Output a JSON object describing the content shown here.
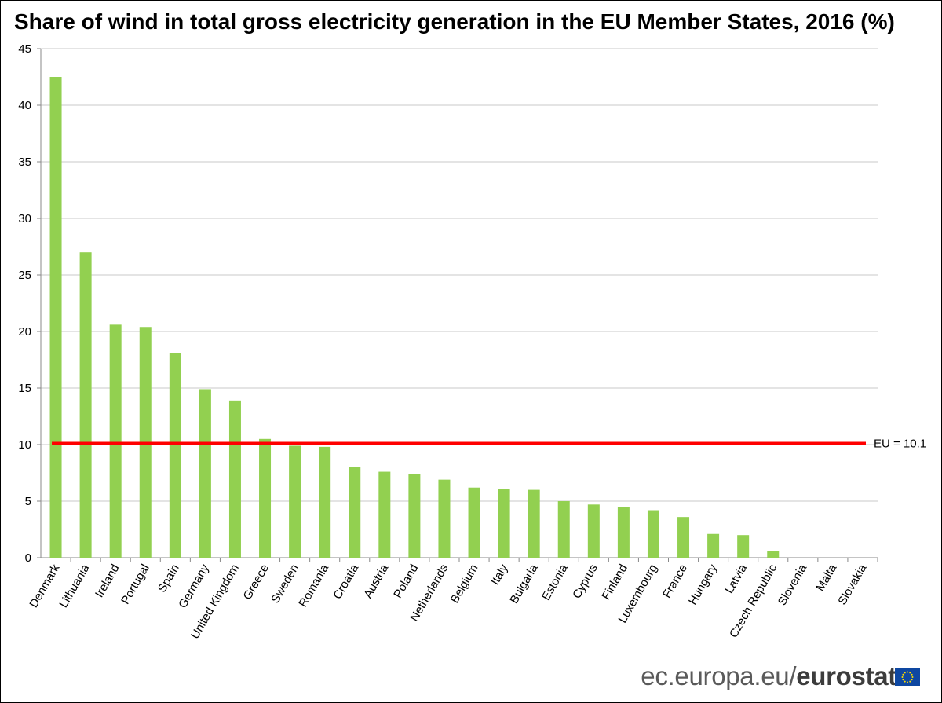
{
  "chart_data": {
    "type": "bar",
    "title": "Share of wind in total gross electricity generation in the EU Member States, 2016 (%)",
    "xlabel": "",
    "ylabel": "",
    "ylim": [
      0,
      45
    ],
    "yticks": [
      0,
      5,
      10,
      15,
      20,
      25,
      30,
      35,
      40,
      45
    ],
    "grid": true,
    "bar_color": "#92d050",
    "categories": [
      "Denmark",
      "Lithuania",
      "Ireland",
      "Portugal",
      "Spain",
      "Germany",
      "United Kingdom",
      "Greece",
      "Sweden",
      "Romania",
      "Croatia",
      "Austria",
      "Poland",
      "Netherlands",
      "Belgium",
      "Italy",
      "Bulgaria",
      "Estonia",
      "Cyprus",
      "Finland",
      "Luxembourg",
      "France",
      "Hungary",
      "Latvia",
      "Czech Republic",
      "Slovenia",
      "Malta",
      "Slovakia"
    ],
    "values": [
      42.5,
      27.0,
      20.6,
      20.4,
      18.1,
      14.9,
      13.9,
      10.5,
      9.9,
      9.8,
      8.0,
      7.6,
      7.4,
      6.9,
      6.2,
      6.1,
      6.0,
      5.0,
      4.7,
      4.5,
      4.2,
      3.6,
      2.1,
      2.0,
      0.6,
      0.0,
      0.0,
      0.0
    ],
    "reference_line": {
      "value": 10.1,
      "label": "EU = 10.1",
      "color": "#ff0000"
    }
  },
  "footer": {
    "brand_regular": "ec.europa.eu/",
    "brand_bold": "eurostat",
    "logo_icon": "eu-flag-icon"
  }
}
